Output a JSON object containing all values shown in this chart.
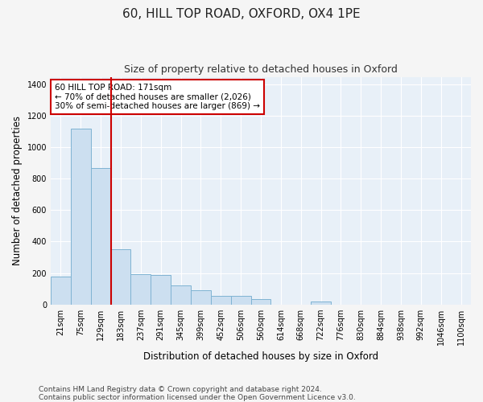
{
  "title_line1": "60, HILL TOP ROAD, OXFORD, OX4 1PE",
  "title_line2": "Size of property relative to detached houses in Oxford",
  "xlabel": "Distribution of detached houses by size in Oxford",
  "ylabel": "Number of detached properties",
  "bar_color": "#ccdff0",
  "bar_edge_color": "#7fb3d3",
  "vline_color": "#cc0000",
  "vline_x_idx": 2.5,
  "annotation_text": "60 HILL TOP ROAD: 171sqm\n← 70% of detached houses are smaller (2,026)\n30% of semi-detached houses are larger (869) →",
  "annotation_box_facecolor": "#ffffff",
  "annotation_box_edgecolor": "#cc0000",
  "categories": [
    "21sqm",
    "75sqm",
    "129sqm",
    "183sqm",
    "237sqm",
    "291sqm",
    "345sqm",
    "399sqm",
    "452sqm",
    "506sqm",
    "560sqm",
    "614sqm",
    "668sqm",
    "722sqm",
    "776sqm",
    "830sqm",
    "884sqm",
    "938sqm",
    "992sqm",
    "1046sqm",
    "1100sqm"
  ],
  "values": [
    175,
    1120,
    870,
    350,
    190,
    185,
    120,
    90,
    55,
    55,
    35,
    0,
    0,
    20,
    0,
    0,
    0,
    0,
    0,
    0,
    0
  ],
  "ylim": [
    0,
    1450
  ],
  "yticks": [
    0,
    200,
    400,
    600,
    800,
    1000,
    1200,
    1400
  ],
  "footer_line1": "Contains HM Land Registry data © Crown copyright and database right 2024.",
  "footer_line2": "Contains public sector information licensed under the Open Government Licence v3.0.",
  "fig_facecolor": "#f5f5f5",
  "ax_facecolor": "#e8f0f8",
  "grid_color": "#ffffff",
  "title_fontsize": 11,
  "subtitle_fontsize": 9,
  "axis_label_fontsize": 8.5,
  "tick_fontsize": 7,
  "annotation_fontsize": 7.5,
  "footer_fontsize": 6.5
}
